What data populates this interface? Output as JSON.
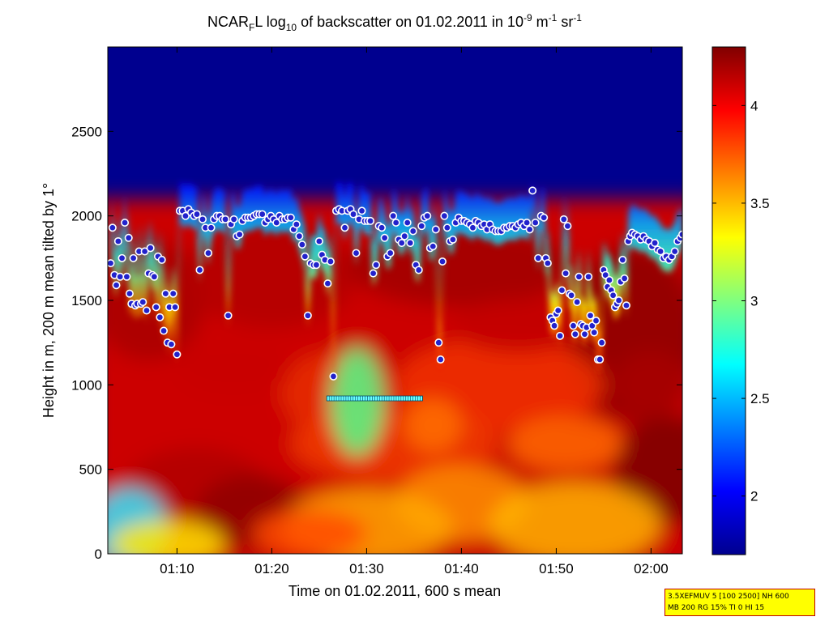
{
  "chart_data": {
    "type": "heatmap",
    "title": {
      "parts": [
        {
          "t": "NCAR",
          "s": "n"
        },
        {
          "t": "F",
          "s": "sub"
        },
        {
          "t": "L log",
          "s": "n"
        },
        {
          "t": "10",
          "s": "sub"
        },
        {
          "t": " of backscatter on 01.02.2011 in 10",
          "s": "n"
        },
        {
          "t": "-9",
          "s": "sup"
        },
        {
          "t": " m",
          "s": "n"
        },
        {
          "t": "-1",
          "s": "sup"
        },
        {
          "t": " sr",
          "s": "n"
        },
        {
          "t": "-1",
          "s": "sup"
        }
      ]
    },
    "xlabel": "Time on 01.02.2011, 600 s mean",
    "ylabel": "Height in m, 200 m mean tilted by 1°",
    "x_ticks": [
      {
        "label": "01:10",
        "min": 70
      },
      {
        "label": "01:20",
        "min": 80
      },
      {
        "label": "01:30",
        "min": 90
      },
      {
        "label": "01:40",
        "min": 100
      },
      {
        "label": "01:50",
        "min": 110
      },
      {
        "label": "02:00",
        "min": 120
      }
    ],
    "xlim_min": [
      62.7,
      123.3
    ],
    "y_ticks": [
      0,
      500,
      1000,
      1500,
      2000,
      2500
    ],
    "ylim": [
      0,
      3000
    ],
    "colorbar": {
      "ticks": [
        2,
        2.5,
        3,
        3.5,
        4
      ],
      "labels": [
        "2",
        "2.5",
        "3",
        "3.5",
        "4"
      ],
      "range": [
        1.7,
        4.3
      ],
      "colormap": "jet"
    },
    "cloud_top_series": [
      [
        63.0,
        1720
      ],
      [
        63.2,
        1930
      ],
      [
        63.4,
        1650
      ],
      [
        63.6,
        1590
      ],
      [
        63.8,
        1850
      ],
      [
        64.0,
        1640
      ],
      [
        64.2,
        1750
      ],
      [
        64.5,
        1960
      ],
      [
        64.7,
        1640
      ],
      [
        64.9,
        1870
      ],
      [
        65.0,
        1540
      ],
      [
        65.2,
        1480
      ],
      [
        65.4,
        1750
      ],
      [
        65.6,
        1470
      ],
      [
        65.8,
        1480
      ],
      [
        66.0,
        1790
      ],
      [
        66.2,
        1480
      ],
      [
        66.4,
        1490
      ],
      [
        66.6,
        1790
      ],
      [
        66.8,
        1440
      ],
      [
        67.0,
        1660
      ],
      [
        67.2,
        1810
      ],
      [
        67.4,
        1650
      ],
      [
        67.6,
        1640
      ],
      [
        67.8,
        1460
      ],
      [
        68.0,
        1760
      ],
      [
        68.2,
        1400
      ],
      [
        68.4,
        1740
      ],
      [
        68.6,
        1320
      ],
      [
        68.8,
        1540
      ],
      [
        69.0,
        1250
      ],
      [
        69.2,
        1460
      ],
      [
        69.4,
        1240
      ],
      [
        69.6,
        1540
      ],
      [
        69.8,
        1460
      ],
      [
        70.0,
        1180
      ],
      [
        70.3,
        2030
      ],
      [
        70.6,
        2030
      ],
      [
        70.9,
        2000
      ],
      [
        71.2,
        2040
      ],
      [
        71.5,
        2020
      ],
      [
        71.8,
        2000
      ],
      [
        72.1,
        2010
      ],
      [
        72.4,
        1680
      ],
      [
        72.7,
        1980
      ],
      [
        73.0,
        1930
      ],
      [
        73.3,
        1780
      ],
      [
        73.6,
        1930
      ],
      [
        73.9,
        1980
      ],
      [
        74.2,
        2000
      ],
      [
        74.5,
        2000
      ],
      [
        74.8,
        1980
      ],
      [
        75.1,
        1980
      ],
      [
        75.4,
        1410
      ],
      [
        75.7,
        1950
      ],
      [
        76.0,
        1980
      ],
      [
        76.3,
        1880
      ],
      [
        76.6,
        1890
      ],
      [
        76.9,
        1970
      ],
      [
        77.2,
        1990
      ],
      [
        77.5,
        1990
      ],
      [
        77.8,
        1990
      ],
      [
        78.1,
        2000
      ],
      [
        78.4,
        2010
      ],
      [
        78.7,
        2010
      ],
      [
        79.0,
        2010
      ],
      [
        79.3,
        1960
      ],
      [
        79.6,
        1980
      ],
      [
        79.9,
        2000
      ],
      [
        80.2,
        1980
      ],
      [
        80.5,
        1960
      ],
      [
        80.8,
        2000
      ],
      [
        81.1,
        1980
      ],
      [
        81.4,
        1980
      ],
      [
        81.7,
        1990
      ],
      [
        82.0,
        1990
      ],
      [
        82.3,
        1920
      ],
      [
        82.6,
        1950
      ],
      [
        82.9,
        1880
      ],
      [
        83.2,
        1830
      ],
      [
        83.5,
        1760
      ],
      [
        83.8,
        1410
      ],
      [
        84.1,
        1720
      ],
      [
        84.4,
        1710
      ],
      [
        84.7,
        1710
      ],
      [
        85.0,
        1850
      ],
      [
        85.3,
        1770
      ],
      [
        85.6,
        1740
      ],
      [
        85.9,
        1600
      ],
      [
        86.2,
        1730
      ],
      [
        86.5,
        1050
      ],
      [
        86.8,
        2030
      ],
      [
        87.1,
        2040
      ],
      [
        87.4,
        2030
      ],
      [
        87.7,
        1930
      ],
      [
        88.0,
        2030
      ],
      [
        88.3,
        2040
      ],
      [
        88.6,
        2010
      ],
      [
        88.9,
        1780
      ],
      [
        89.2,
        1980
      ],
      [
        89.5,
        2030
      ],
      [
        89.8,
        1970
      ],
      [
        90.1,
        1970
      ],
      [
        90.4,
        1970
      ],
      [
        90.7,
        1660
      ],
      [
        91.0,
        1710
      ],
      [
        91.3,
        1940
      ],
      [
        91.6,
        1930
      ],
      [
        91.9,
        1870
      ],
      [
        92.2,
        1760
      ],
      [
        92.5,
        1780
      ],
      [
        92.8,
        2000
      ],
      [
        93.1,
        1960
      ],
      [
        93.4,
        1860
      ],
      [
        93.7,
        1840
      ],
      [
        94.0,
        1880
      ],
      [
        94.3,
        1960
      ],
      [
        94.6,
        1840
      ],
      [
        94.9,
        1910
      ],
      [
        95.2,
        1710
      ],
      [
        95.5,
        1680
      ],
      [
        95.8,
        1940
      ],
      [
        96.1,
        1990
      ],
      [
        96.4,
        2000
      ],
      [
        96.7,
        1810
      ],
      [
        97.0,
        1820
      ],
      [
        97.3,
        1920
      ],
      [
        97.6,
        1250
      ],
      [
        97.8,
        1150
      ],
      [
        98.0,
        1730
      ],
      [
        98.2,
        2000
      ],
      [
        98.5,
        1930
      ],
      [
        98.8,
        1850
      ],
      [
        99.1,
        1860
      ],
      [
        99.4,
        1960
      ],
      [
        99.7,
        1990
      ],
      [
        100.0,
        1970
      ],
      [
        100.3,
        1970
      ],
      [
        100.6,
        1960
      ],
      [
        100.9,
        1950
      ],
      [
        101.2,
        1930
      ],
      [
        101.5,
        1970
      ],
      [
        101.8,
        1960
      ],
      [
        102.1,
        1940
      ],
      [
        102.4,
        1950
      ],
      [
        102.7,
        1920
      ],
      [
        103.0,
        1950
      ],
      [
        103.3,
        1920
      ],
      [
        103.6,
        1910
      ],
      [
        103.9,
        1910
      ],
      [
        104.2,
        1910
      ],
      [
        104.5,
        1930
      ],
      [
        104.8,
        1930
      ],
      [
        105.1,
        1940
      ],
      [
        105.4,
        1940
      ],
      [
        105.7,
        1930
      ],
      [
        106.0,
        1950
      ],
      [
        106.3,
        1960
      ],
      [
        106.6,
        1940
      ],
      [
        106.9,
        1960
      ],
      [
        107.2,
        1920
      ],
      [
        107.5,
        2150
      ],
      [
        107.8,
        1960
      ],
      [
        108.1,
        1750
      ],
      [
        108.4,
        2000
      ],
      [
        108.7,
        1990
      ],
      [
        108.9,
        1750
      ],
      [
        109.1,
        1720
      ],
      [
        109.4,
        1400
      ],
      [
        109.6,
        1380
      ],
      [
        109.8,
        1350
      ],
      [
        110.0,
        1420
      ],
      [
        110.2,
        1440
      ],
      [
        110.4,
        1290
      ],
      [
        110.6,
        1560
      ],
      [
        110.8,
        1980
      ],
      [
        111.0,
        1660
      ],
      [
        111.2,
        1940
      ],
      [
        111.4,
        1540
      ],
      [
        111.6,
        1530
      ],
      [
        111.8,
        1350
      ],
      [
        112.0,
        1300
      ],
      [
        112.2,
        1490
      ],
      [
        112.4,
        1640
      ],
      [
        112.6,
        1360
      ],
      [
        112.8,
        1350
      ],
      [
        113.0,
        1300
      ],
      [
        113.2,
        1340
      ],
      [
        113.4,
        1640
      ],
      [
        113.6,
        1410
      ],
      [
        113.8,
        1350
      ],
      [
        114.0,
        1310
      ],
      [
        114.2,
        1380
      ],
      [
        114.4,
        1150
      ],
      [
        114.6,
        1150
      ],
      [
        114.8,
        1250
      ],
      [
        115.0,
        1680
      ],
      [
        115.2,
        1650
      ],
      [
        115.4,
        1580
      ],
      [
        115.6,
        1620
      ],
      [
        115.8,
        1560
      ],
      [
        116.0,
        1530
      ],
      [
        116.2,
        1460
      ],
      [
        116.4,
        1480
      ],
      [
        116.6,
        1500
      ],
      [
        116.8,
        1610
      ],
      [
        117.0,
        1740
      ],
      [
        117.2,
        1630
      ],
      [
        117.4,
        1470
      ],
      [
        117.6,
        1850
      ],
      [
        117.8,
        1880
      ],
      [
        118.0,
        1900
      ],
      [
        118.3,
        1890
      ],
      [
        118.6,
        1880
      ],
      [
        118.9,
        1860
      ],
      [
        119.2,
        1880
      ],
      [
        119.5,
        1860
      ],
      [
        119.8,
        1850
      ],
      [
        120.1,
        1820
      ],
      [
        120.4,
        1840
      ],
      [
        120.7,
        1800
      ],
      [
        121.0,
        1790
      ],
      [
        121.3,
        1750
      ],
      [
        121.6,
        1760
      ],
      [
        121.9,
        1740
      ],
      [
        122.2,
        1760
      ],
      [
        122.5,
        1790
      ],
      [
        122.8,
        1850
      ],
      [
        123.1,
        1870
      ],
      [
        123.3,
        1890
      ]
    ],
    "segment": {
      "x": [
        85.8,
        95.9
      ],
      "y": 920,
      "ticks": 40
    }
  },
  "info_box": {
    "line1": "3.5XEFMUV 5 [100 2500] NH 600",
    "line2": "MB 200 RG 15% TI 0 HI 15"
  }
}
